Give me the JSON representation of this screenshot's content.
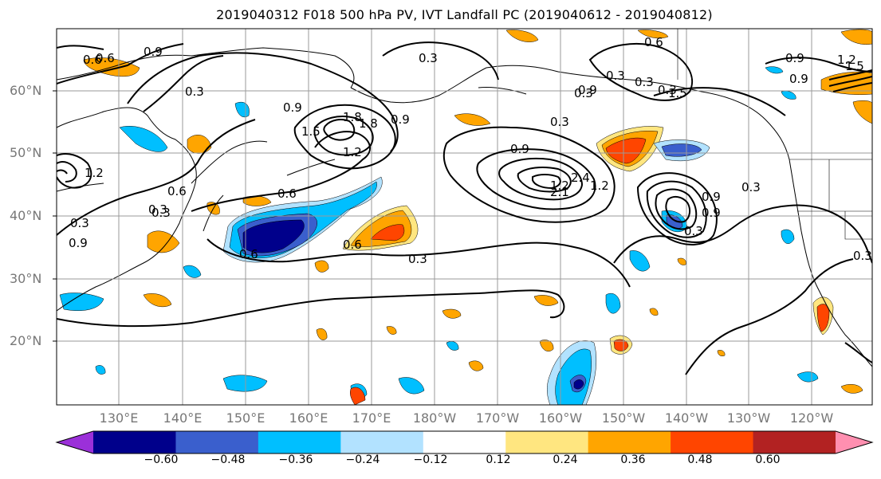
{
  "title": "2019040312 F018 500 hPa PV, IVT Landfall PC (2019040612 - 2019040812)",
  "lat_labels": [
    "60°N",
    "50°N",
    "40°N",
    "30°N",
    "20°N"
  ],
  "lon_labels": [
    "130°E",
    "140°E",
    "150°E",
    "160°E",
    "170°E",
    "180°W",
    "170°W",
    "160°W",
    "150°W",
    "140°W",
    "130°W",
    "120°W"
  ],
  "contour_labels": [
    "0.6",
    "0.9",
    "0.3",
    "0.3",
    "0.6",
    "0.9",
    "0.3",
    "0.9",
    "1.2",
    "1.5",
    "1.8",
    "0.9",
    "1.2",
    "0.6",
    "0.6",
    "0.3",
    "0.3",
    "0.9",
    "0.3",
    "0.3",
    "0.9",
    "0.3",
    "0.3",
    "0.9",
    "2.1",
    "2.4",
    "1.2",
    "0.3",
    "1.2",
    "0.3",
    "0.9",
    "0.3",
    "0.9",
    "0.6",
    "0.6",
    "1.2",
    "1.5",
    "1.8",
    "0.3",
    "1.5",
    "0.9",
    "0.3",
    "0.6"
  ],
  "colorbar": {
    "ticks": [
      "−0.60",
      "−0.48",
      "−0.36",
      "−0.24",
      "−0.12",
      "0.12",
      "0.24",
      "0.36",
      "0.48",
      "0.60"
    ],
    "colors": [
      "#9b30d9",
      "#00008b",
      "#3a5fcd",
      "#00bfff",
      "#b2e2ff",
      "#ffffff",
      "#ffe680",
      "#ffa500",
      "#ff4500",
      "#b22222",
      "#ff8fb0"
    ]
  }
}
